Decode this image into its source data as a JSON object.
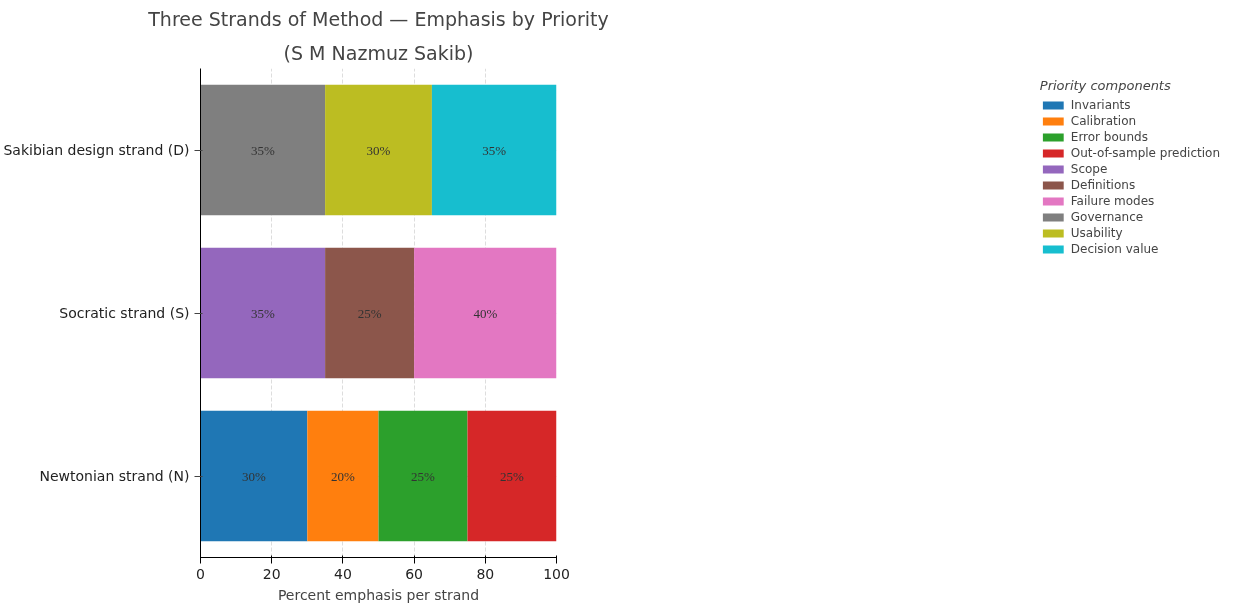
{
  "chart_data": {
    "type": "bar",
    "orientation": "horizontal",
    "stacked": true,
    "title": "Three Strands of Method — Emphasis by Priority",
    "subtitle": "(S M Nazmuz Sakib)",
    "xlabel": "Percent emphasis per strand",
    "legend_title": "Priority components",
    "categories": [
      "Sakibian design strand (D)",
      "Socratic strand (S)",
      "Newtonian strand (N)"
    ],
    "xlim": [
      0,
      100
    ],
    "xticks": [
      0,
      20,
      40,
      60,
      80,
      100
    ],
    "grid": true,
    "legend": "right",
    "series": [
      {
        "name": "Invariants",
        "color": "#1f77b4",
        "values": [
          null,
          null,
          30
        ],
        "value_labels": [
          null,
          null,
          "30%"
        ]
      },
      {
        "name": "Calibration",
        "color": "#ff7f0e",
        "values": [
          null,
          null,
          20
        ],
        "value_labels": [
          null,
          null,
          "20%"
        ]
      },
      {
        "name": "Error bounds",
        "color": "#2ca02c",
        "values": [
          null,
          null,
          25
        ],
        "value_labels": [
          null,
          null,
          "25%"
        ]
      },
      {
        "name": "Out-of-sample prediction",
        "color": "#d62728",
        "values": [
          null,
          null,
          25
        ],
        "value_labels": [
          null,
          null,
          "25%"
        ]
      },
      {
        "name": "Scope",
        "color": "#9467bd",
        "values": [
          null,
          35,
          null
        ],
        "value_labels": [
          null,
          "35%",
          null
        ]
      },
      {
        "name": "Definitions",
        "color": "#8c564b",
        "values": [
          null,
          25,
          null
        ],
        "value_labels": [
          null,
          "25%",
          null
        ]
      },
      {
        "name": "Failure modes",
        "color": "#e377c2",
        "values": [
          null,
          40,
          null
        ],
        "value_labels": [
          null,
          "40%",
          null
        ]
      },
      {
        "name": "Governance",
        "color": "#7f7f7f",
        "values": [
          35,
          null,
          null
        ],
        "value_labels": [
          "35%",
          null,
          null
        ]
      },
      {
        "name": "Usability",
        "color": "#bcbd22",
        "values": [
          30,
          null,
          null
        ],
        "value_labels": [
          "30%",
          null,
          null
        ]
      },
      {
        "name": "Decision value",
        "color": "#17becf",
        "values": [
          35,
          null,
          null
        ],
        "value_labels": [
          "35%",
          null,
          null
        ]
      }
    ]
  }
}
